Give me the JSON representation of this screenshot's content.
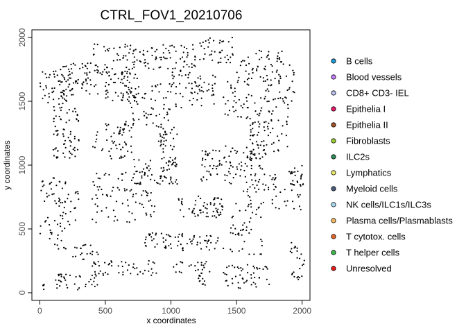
{
  "chart_data": {
    "type": "scatter",
    "title": "CTRL_FOV1_20210706",
    "xlabel": "x coordinates",
    "ylabel": "y coordinates",
    "xlim": [
      -60,
      2060
    ],
    "ylim": [
      -60,
      2060
    ],
    "x_ticks": [
      0,
      500,
      1000,
      1500,
      2000
    ],
    "y_ticks": [
      0,
      500,
      1000,
      1500,
      2000
    ],
    "grid": false,
    "legend_position": "right",
    "point_color": "#000000",
    "legend": [
      {
        "label": "B cells",
        "color": "#1f9ad6"
      },
      {
        "label": "Blood vessels",
        "color": "#c77cff"
      },
      {
        "label": "CD8+ CD3- IEL",
        "color": "#b9bff0"
      },
      {
        "label": "Epithelia I",
        "color": "#e6196b"
      },
      {
        "label": "Epithelia II",
        "color": "#a0522d"
      },
      {
        "label": "Fibroblasts",
        "color": "#9acd32"
      },
      {
        "label": "ILC2s",
        "color": "#2e8b57"
      },
      {
        "label": "Lymphatics",
        "color": "#e8e86a"
      },
      {
        "label": "Myeloid cells",
        "color": "#4a5a7a"
      },
      {
        "label": "NK cells/ILC1s/ILC3s",
        "color": "#a8d8f0"
      },
      {
        "label": "Plasma cells/Plasmablasts",
        "color": "#f4b860"
      },
      {
        "label": "T cytotox. cells",
        "color": "#e0642a"
      },
      {
        "label": "T helper cells",
        "color": "#3cb44b"
      },
      {
        "label": "Unresolved",
        "color": "#e31a1c"
      }
    ],
    "clusters": [
      {
        "x": [
          0,
          250
        ],
        "y": [
          1450,
          1750
        ],
        "n": 55
      },
      {
        "x": [
          150,
          450
        ],
        "y": [
          1550,
          1800
        ],
        "n": 60
      },
      {
        "x": [
          400,
          800
        ],
        "y": [
          1700,
          1950
        ],
        "n": 70
      },
      {
        "x": [
          800,
          1200
        ],
        "y": [
          1750,
          1950
        ],
        "n": 60
      },
      {
        "x": [
          1200,
          1500
        ],
        "y": [
          1800,
          2000
        ],
        "n": 40
      },
      {
        "x": [
          1500,
          1850
        ],
        "y": [
          1650,
          1900
        ],
        "n": 50
      },
      {
        "x": [
          500,
          750
        ],
        "y": [
          1500,
          1750
        ],
        "n": 55
      },
      {
        "x": [
          650,
          1000
        ],
        "y": [
          1300,
          1650
        ],
        "n": 70
      },
      {
        "x": [
          1000,
          1350
        ],
        "y": [
          1450,
          1750
        ],
        "n": 65
      },
      {
        "x": [
          1400,
          1600
        ],
        "y": [
          1350,
          1700
        ],
        "n": 40
      },
      {
        "x": [
          1700,
          1950
        ],
        "y": [
          1500,
          1800
        ],
        "n": 40
      },
      {
        "x": [
          100,
          300
        ],
        "y": [
          1050,
          1450
        ],
        "n": 70
      },
      {
        "x": [
          400,
          700
        ],
        "y": [
          1050,
          1350
        ],
        "n": 55
      },
      {
        "x": [
          900,
          1050
        ],
        "y": [
          850,
          1300
        ],
        "n": 75
      },
      {
        "x": [
          1600,
          1750
        ],
        "y": [
          1050,
          1350
        ],
        "n": 35
      },
      {
        "x": [
          1600,
          1900
        ],
        "y": [
          1100,
          1550
        ],
        "n": 60
      },
      {
        "x": [
          1230,
          1650
        ],
        "y": [
          850,
          1150
        ],
        "n": 90
      },
      {
        "x": [
          1900,
          2020
        ],
        "y": [
          830,
          1020
        ],
        "n": 25
      },
      {
        "x": [
          0,
          200
        ],
        "y": [
          700,
          900
        ],
        "n": 25
      },
      {
        "x": [
          400,
          900
        ],
        "y": [
          550,
          950
        ],
        "n": 85
      },
      {
        "x": [
          700,
          850
        ],
        "y": [
          750,
          1050
        ],
        "n": 30
      },
      {
        "x": [
          1550,
          2000
        ],
        "y": [
          650,
          850
        ],
        "n": 45
      },
      {
        "x": [
          1550,
          1800
        ],
        "y": [
          850,
          1000
        ],
        "n": 20
      },
      {
        "x": [
          1050,
          1400
        ],
        "y": [
          580,
          760
        ],
        "n": 60
      },
      {
        "x": [
          100,
          300
        ],
        "y": [
          530,
          800
        ],
        "n": 30
      },
      {
        "x": [
          0,
          200
        ],
        "y": [
          330,
          600
        ],
        "n": 25
      },
      {
        "x": [
          800,
          1100
        ],
        "y": [
          330,
          470
        ],
        "n": 45
      },
      {
        "x": [
          1100,
          1400
        ],
        "y": [
          330,
          450
        ],
        "n": 30
      },
      {
        "x": [
          1450,
          1700
        ],
        "y": [
          300,
          700
        ],
        "n": 45
      },
      {
        "x": [
          1900,
          2020
        ],
        "y": [
          100,
          430
        ],
        "n": 25
      },
      {
        "x": [
          200,
          450
        ],
        "y": [
          260,
          380
        ],
        "n": 20
      },
      {
        "x": [
          400,
          900
        ],
        "y": [
          130,
          250
        ],
        "n": 50
      },
      {
        "x": [
          100,
          450
        ],
        "y": [
          20,
          150
        ],
        "n": 35
      },
      {
        "x": [
          1200,
          1300
        ],
        "y": [
          60,
          250
        ],
        "n": 20
      },
      {
        "x": [
          1400,
          1750
        ],
        "y": [
          30,
          220
        ],
        "n": 50
      },
      {
        "x": [
          1000,
          1250
        ],
        "y": [
          150,
          250
        ],
        "n": 15
      },
      {
        "x": [
          10,
          40
        ],
        "y": [
          20,
          150
        ],
        "n": 4
      }
    ]
  }
}
